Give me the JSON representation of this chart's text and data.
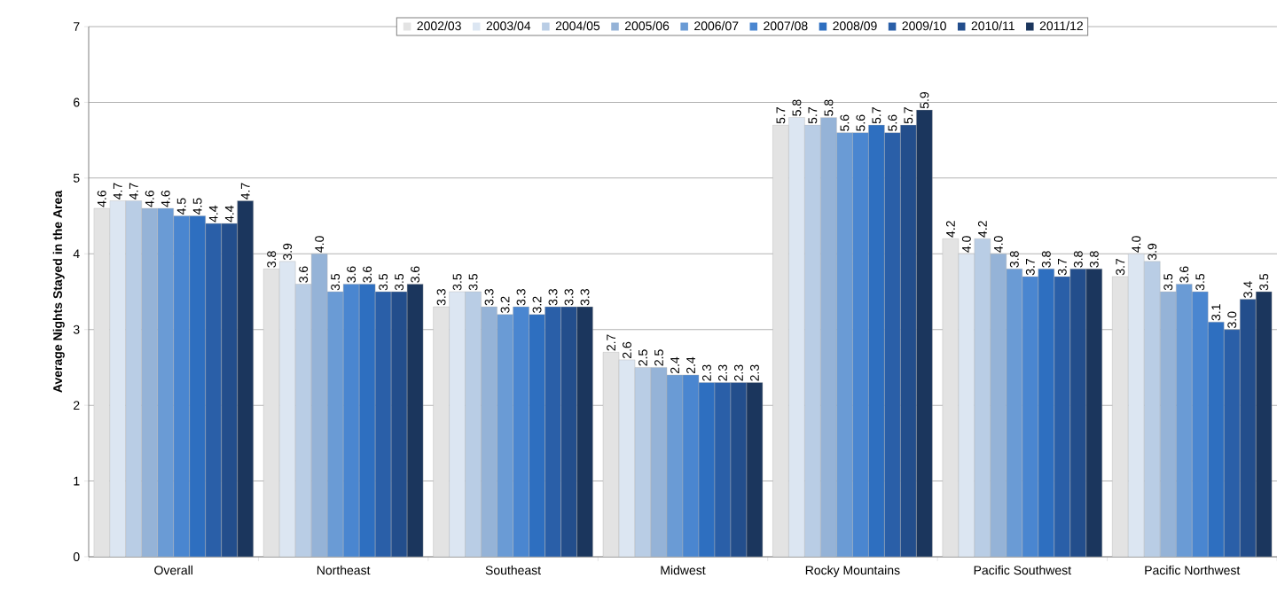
{
  "chart_data": {
    "type": "bar",
    "ylabel": "Average Nights Stayed in the Area",
    "categories": [
      "Overall",
      "Northeast",
      "Southeast",
      "Midwest",
      "Rocky Mountains",
      "Pacific Southwest",
      "Pacific Northwest"
    ],
    "series": [
      {
        "name": "2002/03",
        "color": "#e3e3e3",
        "values": [
          4.6,
          3.8,
          3.3,
          2.7,
          5.7,
          4.2,
          3.7
        ],
        "value_labels": [
          "4.6",
          "3.8",
          "3.3",
          "2.7",
          "5.7",
          "4.2",
          "3.7"
        ]
      },
      {
        "name": "2003/04",
        "color": "#dce6f2",
        "values": [
          4.7,
          3.9,
          3.5,
          2.6,
          5.8,
          4.0,
          4.0
        ],
        "value_labels": [
          "4.7",
          "3.9",
          "3.5",
          "2.6",
          "5.8",
          "4.0",
          "4.0"
        ]
      },
      {
        "name": "2004/05",
        "color": "#b9cde5",
        "values": [
          4.7,
          3.6,
          3.5,
          2.5,
          5.7,
          4.2,
          3.9
        ],
        "value_labels": [
          "4.7",
          "3.6",
          "3.5",
          "2.5",
          "5.7",
          "4.2",
          "3.9"
        ]
      },
      {
        "name": "2005/06",
        "color": "#95b3d7",
        "values": [
          4.6,
          4.0,
          3.3,
          2.5,
          5.8,
          4.0,
          3.5
        ],
        "value_labels": [
          "4.6",
          "4.0",
          "3.3",
          "2.5",
          "5.8",
          "4.0",
          "3.5"
        ]
      },
      {
        "name": "2006/07",
        "color": "#6a9bd5",
        "values": [
          4.6,
          3.5,
          3.2,
          2.4,
          5.6,
          3.8,
          3.6
        ],
        "value_labels": [
          "4.6",
          "3.5",
          "3.2",
          "2.4",
          "5.6",
          "3.8",
          "3.6"
        ]
      },
      {
        "name": "2007/08",
        "color": "#4a86d0",
        "values": [
          4.5,
          3.6,
          3.3,
          2.4,
          5.6,
          3.7,
          3.5
        ],
        "value_labels": [
          "4.5",
          "3.6",
          "3.3",
          "2.4",
          "5.6",
          "3.7",
          "3.5"
        ]
      },
      {
        "name": "2008/09",
        "color": "#2e6fc0",
        "values": [
          4.5,
          3.6,
          3.2,
          2.3,
          5.7,
          3.8,
          3.1
        ],
        "value_labels": [
          "4.5",
          "3.6",
          "3.2",
          "2.3",
          "5.7",
          "3.8",
          "3.1"
        ]
      },
      {
        "name": "2009/10",
        "color": "#2a5fa8",
        "values": [
          4.4,
          3.5,
          3.3,
          2.3,
          5.6,
          3.7,
          3.0
        ],
        "value_labels": [
          "4.4",
          "3.5",
          "3.3",
          "2.3",
          "5.6",
          "3.7",
          "3.0"
        ]
      },
      {
        "name": "2010/11",
        "color": "#234e8c",
        "values": [
          4.4,
          3.5,
          3.3,
          2.3,
          5.7,
          3.8,
          3.4
        ],
        "value_labels": [
          "4.4",
          "3.5",
          "3.3",
          "2.3",
          "5.7",
          "3.8",
          "3.4"
        ]
      },
      {
        "name": "2011/12",
        "color": "#1b365d",
        "values": [
          4.7,
          3.6,
          3.3,
          2.3,
          5.9,
          3.8,
          3.5
        ],
        "value_labels": [
          "4.7",
          "3.6",
          "3.3",
          "2.3",
          "5.9",
          "3.8",
          "3.5"
        ]
      }
    ],
    "ylim": [
      0,
      7
    ],
    "yticks": [
      0,
      1,
      2,
      3,
      4,
      5,
      6,
      7
    ],
    "grid": "y",
    "legend": "top"
  }
}
